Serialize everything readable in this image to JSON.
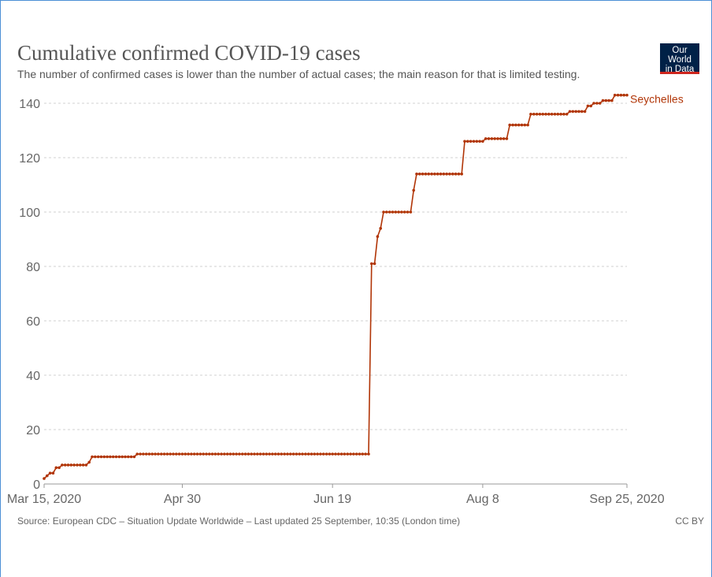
{
  "header": {
    "title": "Cumulative confirmed COVID-19 cases",
    "subtitle": "The number of confirmed cases is lower than the number of actual cases; the main reason for that is limited testing."
  },
  "logo": {
    "line1": "Our World",
    "line2": "in Data",
    "bg_color": "#002147",
    "accent_color": "#ce261e"
  },
  "footer": {
    "source": "Source: European CDC – Situation Update Worldwide – Last updated 25 September, 10:35 (London time)",
    "license": "CC BY"
  },
  "chart_data": {
    "type": "line",
    "title": "Cumulative confirmed COVID-19 cases",
    "xlabel": "",
    "ylabel": "",
    "xlim": [
      "2020-03-15",
      "2020-09-25"
    ],
    "ylim": [
      0,
      145
    ],
    "grid": true,
    "legend": "right, label at line end",
    "x_ticks": [
      "Mar 15, 2020",
      "Apr 30",
      "Jun 19",
      "Aug 8",
      "Sep 25, 2020"
    ],
    "x_tick_dates": [
      "2020-03-15",
      "2020-04-30",
      "2020-06-19",
      "2020-08-08",
      "2020-09-25"
    ],
    "y_ticks": [
      0,
      20,
      40,
      60,
      80,
      100,
      120,
      140
    ],
    "series": [
      {
        "name": "Seychelles",
        "color": "#b13507",
        "points": [
          [
            "2020-03-15",
            2
          ],
          [
            "2020-03-16",
            3
          ],
          [
            "2020-03-17",
            4
          ],
          [
            "2020-03-18",
            4
          ],
          [
            "2020-03-19",
            6
          ],
          [
            "2020-03-20",
            6
          ],
          [
            "2020-03-21",
            7
          ],
          [
            "2020-03-29",
            7
          ],
          [
            "2020-03-30",
            8
          ],
          [
            "2020-03-31",
            10
          ],
          [
            "2020-04-14",
            10
          ],
          [
            "2020-04-15",
            11
          ],
          [
            "2020-07-01",
            11
          ],
          [
            "2020-07-02",
            81
          ],
          [
            "2020-07-03",
            81
          ],
          [
            "2020-07-04",
            91
          ],
          [
            "2020-07-05",
            94
          ],
          [
            "2020-07-06",
            100
          ],
          [
            "2020-07-15",
            100
          ],
          [
            "2020-07-16",
            108
          ],
          [
            "2020-07-17",
            114
          ],
          [
            "2020-08-01",
            114
          ],
          [
            "2020-08-02",
            126
          ],
          [
            "2020-08-08",
            126
          ],
          [
            "2020-08-09",
            127
          ],
          [
            "2020-08-16",
            127
          ],
          [
            "2020-08-17",
            132
          ],
          [
            "2020-08-23",
            132
          ],
          [
            "2020-08-24",
            136
          ],
          [
            "2020-09-05",
            136
          ],
          [
            "2020-09-06",
            137
          ],
          [
            "2020-09-11",
            137
          ],
          [
            "2020-09-12",
            139
          ],
          [
            "2020-09-13",
            139
          ],
          [
            "2020-09-14",
            140
          ],
          [
            "2020-09-16",
            140
          ],
          [
            "2020-09-17",
            141
          ],
          [
            "2020-09-20",
            141
          ],
          [
            "2020-09-21",
            143
          ],
          [
            "2020-09-25",
            143
          ]
        ]
      }
    ]
  }
}
